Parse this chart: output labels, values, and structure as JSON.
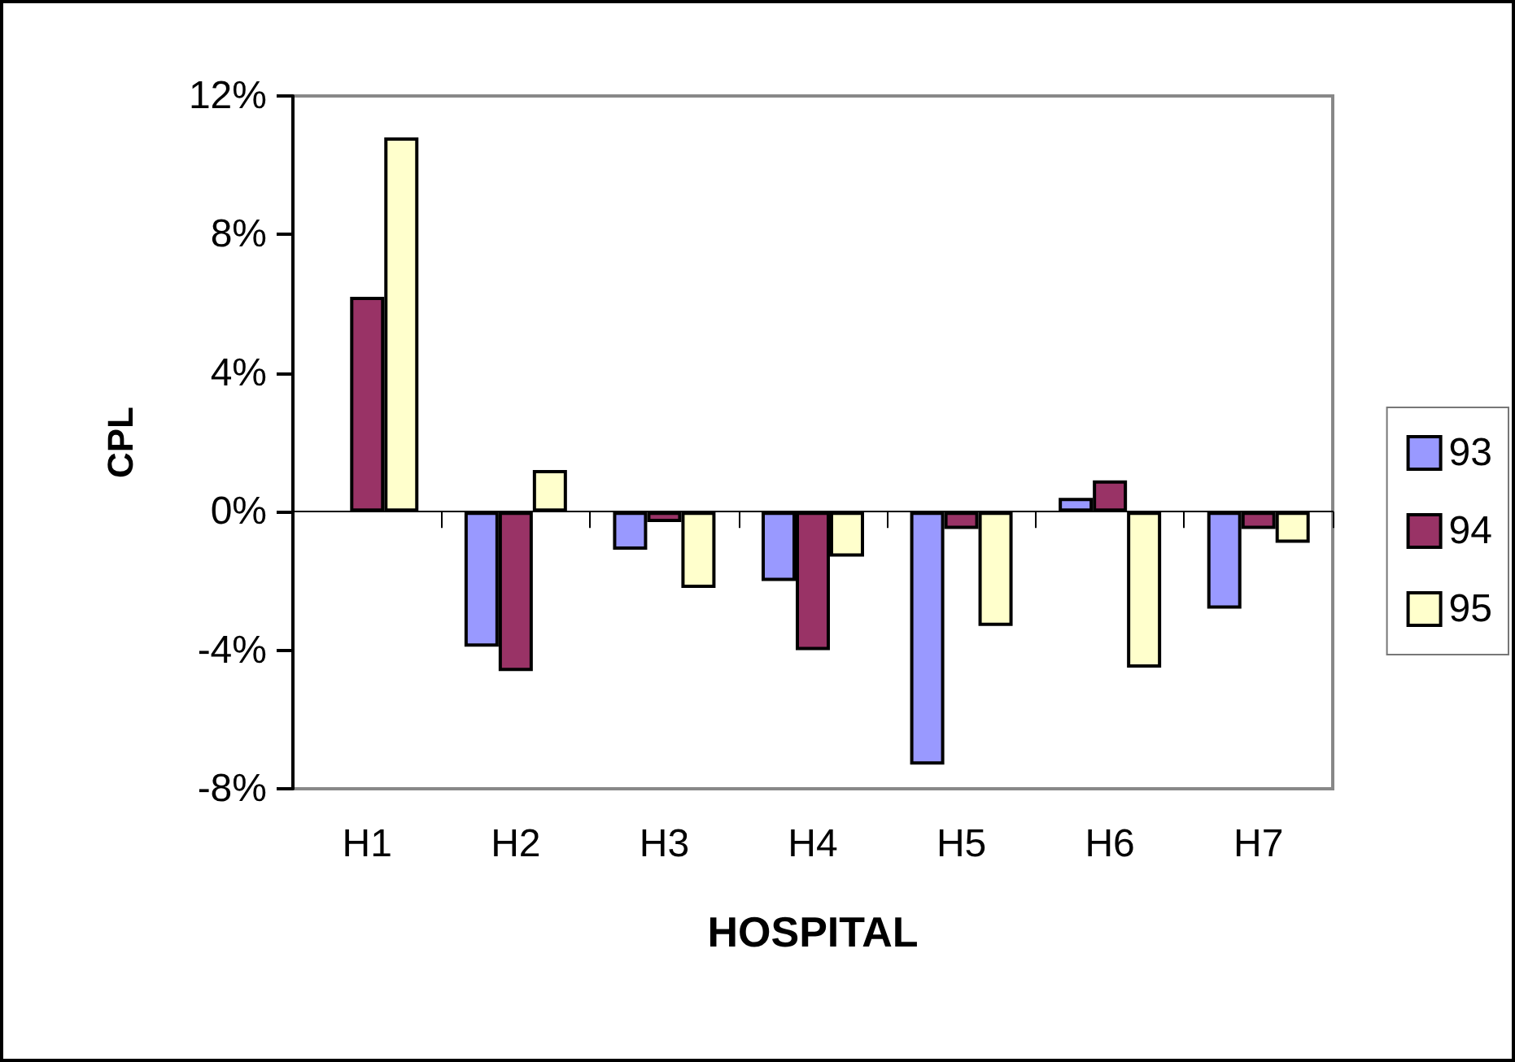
{
  "chart_data": {
    "type": "bar",
    "xlabel": "HOSPITAL",
    "ylabel": "CPL",
    "categories": [
      "H1",
      "H2",
      "H3",
      "H4",
      "H5",
      "H6",
      "H7"
    ],
    "series": [
      {
        "name": "93",
        "color": "#9999ff",
        "values": [
          null,
          -3.9,
          -1.1,
          -2.0,
          -7.3,
          0.4,
          -2.8
        ]
      },
      {
        "name": "94",
        "color": "#993366",
        "values": [
          6.2,
          -4.6,
          -0.3,
          -4.0,
          -0.5,
          0.9,
          -0.5
        ]
      },
      {
        "name": "95",
        "color": "#ffffcc",
        "values": [
          10.8,
          1.2,
          -2.2,
          -1.3,
          -3.3,
          -4.5,
          -0.9
        ]
      }
    ],
    "ylim": [
      -8,
      12
    ],
    "yticks": [
      {
        "value": -8,
        "label": "-8%"
      },
      {
        "value": -4,
        "label": "-4%"
      },
      {
        "value": 0,
        "label": "0%"
      },
      {
        "value": 4,
        "label": "4%"
      },
      {
        "value": 8,
        "label": "8%"
      },
      {
        "value": 12,
        "label": "12%"
      }
    ],
    "legend": "right"
  }
}
